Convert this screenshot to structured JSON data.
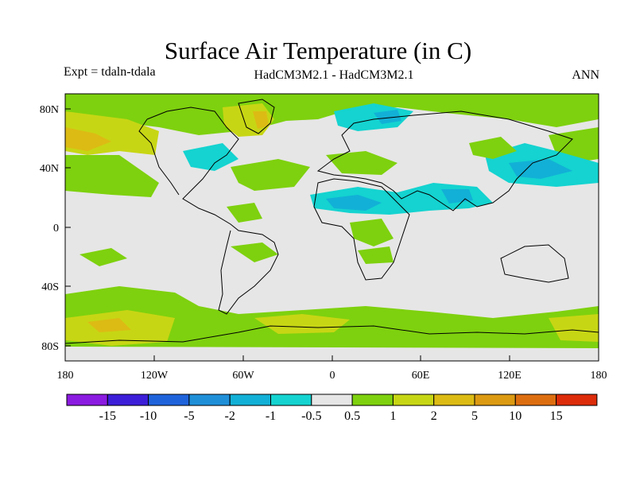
{
  "title": "Surface Air Temperature (in C)",
  "subtitle_left": "Expt = tdaln-tdala",
  "subtitle_center": "HadCM3M2.1 - HadCM3M2.1",
  "subtitle_right": "ANN",
  "lon_ticks": [
    "180",
    "120W",
    "60W",
    "0",
    "60E",
    "120E",
    "180"
  ],
  "lat_ticks": [
    "80N",
    "40N",
    "0",
    "40S",
    "80S"
  ],
  "colorbar": {
    "colors": [
      "#8b1be0",
      "#3c1ed8",
      "#1f63db",
      "#1f8fd8",
      "#12b0d6",
      "#14d3d0",
      "#e6e6e6",
      "#7ed10e",
      "#c7d614",
      "#dcbb14",
      "#dc9a12",
      "#dd6e10",
      "#dc2c0a"
    ],
    "labels": [
      "-15",
      "-10",
      "-5",
      "-2",
      "-1",
      "-0.5",
      "0.5",
      "1",
      "2",
      "5",
      "10",
      "15"
    ]
  },
  "colors": {
    "background": "#e6e6e6",
    "green": "#7ed10e",
    "yellow_green": "#c7d614",
    "gold": "#dcbb14",
    "orange": "#dc9a12",
    "cyan": "#14d3d0",
    "light_blue": "#12b0d6",
    "blue": "#1f8fd8",
    "coast": "#000000"
  }
}
